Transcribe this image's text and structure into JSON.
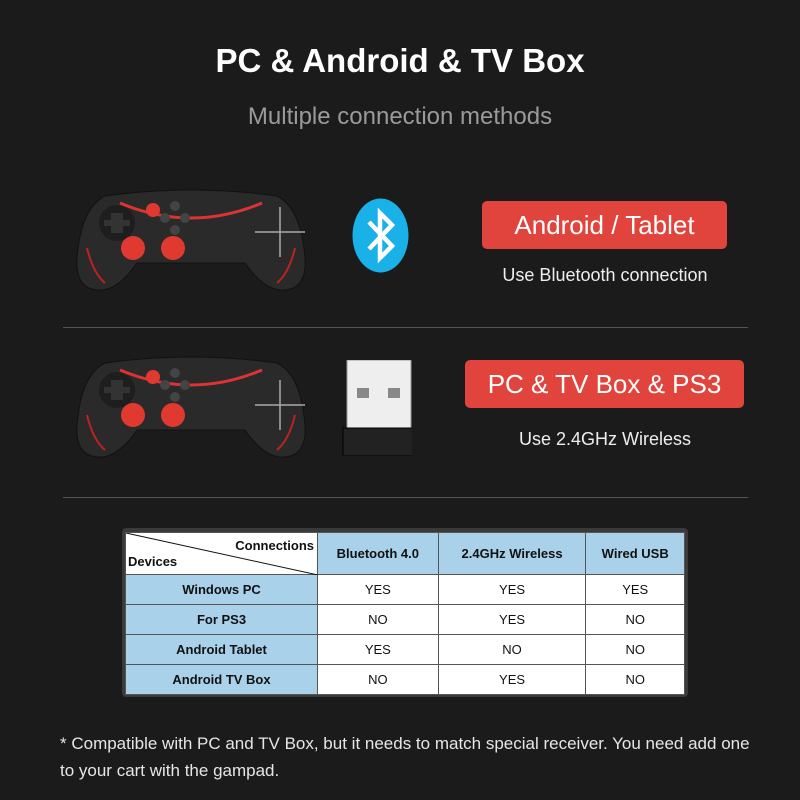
{
  "title": "PC & Android & TV Box",
  "subtitle": "Multiple connection methods",
  "modes": [
    {
      "label": "Android / Tablet",
      "caption": "Use Bluetooth connection",
      "icon": "bluetooth-icon"
    },
    {
      "label": "PC & TV Box & PS3",
      "caption": "Use 2.4GHz Wireless",
      "icon": "usb-dongle-icon"
    }
  ],
  "table": {
    "corner_top": "Connections",
    "corner_bottom": "Devices",
    "columns": [
      "Bluetooth 4.0",
      "2.4GHz Wireless",
      "Wired USB"
    ],
    "rows": [
      {
        "device": "Windows PC",
        "values": [
          "YES",
          "YES",
          "YES"
        ]
      },
      {
        "device": "For PS3",
        "values": [
          "NO",
          "YES",
          "NO"
        ]
      },
      {
        "device": "Android Tablet",
        "values": [
          "YES",
          "NO",
          "NO"
        ]
      },
      {
        "device": "Android TV Box",
        "values": [
          "NO",
          "YES",
          "NO"
        ]
      }
    ]
  },
  "note": "* Compatible with PC and TV Box, but it needs to match special receiver. You need add one to your cart with the gampad.",
  "colors": {
    "accent": "#e0443c",
    "table_header": "#a9d1ea",
    "bluetooth": "#1ab0e8",
    "background": "#1b1b1b"
  }
}
